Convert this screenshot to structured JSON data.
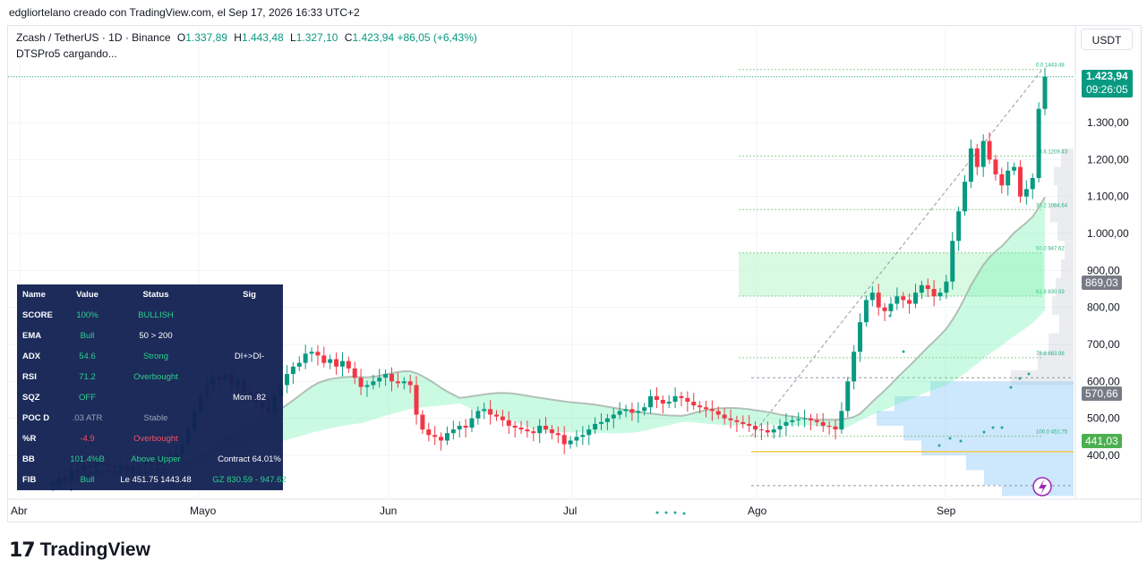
{
  "caption": "edgliortelano creado con TradingView.com, el Sep 17, 2026 16:33 UTC+2",
  "legend": {
    "symbol": "Zcash / TetherUS · 1D · Binance",
    "o_label": "O",
    "o": "1.337,89",
    "h_label": "H",
    "h": "1.443,48",
    "l_label": "L",
    "l": "1.327,10",
    "c_label": "C",
    "c": "1.423,94",
    "change": "+86,05 (+6,43%)",
    "indicator": "DTSPro5 cargando..."
  },
  "currency_button": "USDT",
  "price_badges": {
    "last": "1.423,94",
    "countdown": "09:26:05",
    "b869": "869,03",
    "b570": "570,66",
    "b441": "441,03"
  },
  "colors": {
    "up": "#089981",
    "down": "#f23645",
    "accent": "#2962ff"
  },
  "table": {
    "headers": [
      "Name",
      "Value",
      "Status",
      "Sig"
    ],
    "rows": [
      {
        "name": "SCORE",
        "value": "100%",
        "status": "BULLISH",
        "sig": ""
      },
      {
        "name": "EMA",
        "value": "Bull",
        "status": "50 > 200",
        "sig": ""
      },
      {
        "name": "ADX",
        "value": "54.6",
        "status": "Strong",
        "sig": "DI+>DI-"
      },
      {
        "name": "RSI",
        "value": "71.2",
        "status": "Overbought",
        "sig": ""
      },
      {
        "name": "SQZ",
        "value": "OFF",
        "status": "",
        "sig": "Mom .82"
      },
      {
        "name": "POC D",
        "value": ".03 ATR",
        "status": "Stable",
        "sig": ""
      },
      {
        "name": "%R",
        "value": "-4.9",
        "status": "Overbought",
        "sig": ""
      },
      {
        "name": "BB",
        "value": "101.4%B",
        "status": "Above Upper",
        "sig": "Contract 64.01%"
      },
      {
        "name": "FIB",
        "value": "Bull",
        "status": "Le 451.75 1443.48",
        "sig": "GZ 830.59 - 947.62"
      }
    ]
  },
  "brand": "TradingView",
  "chart_data": {
    "type": "candlestick",
    "x_ticks": [
      "Abr",
      "Mayo",
      "Jun",
      "Jul",
      "Ago",
      "Sep"
    ],
    "y_ticks": [
      "1.300,00",
      "1.200,00",
      "1.100,00",
      "1.000,00",
      "900,00",
      "800,00",
      "700,00",
      "600,00",
      "500,00",
      "400,00"
    ],
    "y_tick_values": [
      1300,
      1200,
      1100,
      1000,
      900,
      800,
      700,
      600,
      500,
      400
    ],
    "ylim": [
      300,
      1480
    ],
    "fib_levels": [
      {
        "label": "0.0  1443.48",
        "value": 1443.48
      },
      {
        "label": "23.6  1209.43",
        "value": 1209.43
      },
      {
        "label": "38.2  1064.64",
        "value": 1064.64
      },
      {
        "label": "50.0  947.62",
        "value": 947.62
      },
      {
        "label": "61.8  830.59",
        "value": 830.59
      },
      {
        "label": "78.6  663.98",
        "value": 663.98
      },
      {
        "label": "100.0  451.75",
        "value": 451.75
      }
    ],
    "close_series": [
      325,
      340,
      330,
      360,
      355,
      372,
      368,
      380,
      375,
      370,
      365,
      372,
      360,
      368,
      375,
      382,
      378,
      372,
      385,
      395,
      405,
      430,
      470,
      520,
      560,
      590,
      610,
      605,
      620,
      590,
      600,
      570,
      560,
      545,
      530,
      520,
      560,
      590,
      620,
      640,
      650,
      675,
      680,
      670,
      650,
      660,
      640,
      655,
      635,
      610,
      585,
      590,
      600,
      610,
      620,
      600,
      595,
      600,
      590,
      510,
      470,
      455,
      450,
      440,
      460,
      470,
      480,
      475,
      500,
      520,
      525,
      510,
      505,
      495,
      480,
      475,
      470,
      465,
      460,
      480,
      470,
      460,
      455,
      430,
      440,
      450,
      455,
      470,
      485,
      490,
      500,
      510,
      520,
      525,
      515,
      520,
      530,
      560,
      550,
      540,
      545,
      560,
      555,
      545,
      535,
      530,
      525,
      520,
      510,
      500,
      495,
      490,
      485,
      480,
      470,
      468,
      462,
      470,
      480,
      490,
      495,
      498,
      500,
      495,
      490,
      480,
      478,
      470,
      520,
      600,
      680,
      760,
      820,
      840,
      800,
      790,
      810,
      830,
      820,
      810,
      840,
      860,
      850,
      830,
      840,
      870,
      980,
      1060,
      1140,
      1230,
      1180,
      1250,
      1200,
      1160,
      1130,
      1170,
      1180,
      1100,
      1120,
      1150,
      1337,
      1424
    ]
  }
}
